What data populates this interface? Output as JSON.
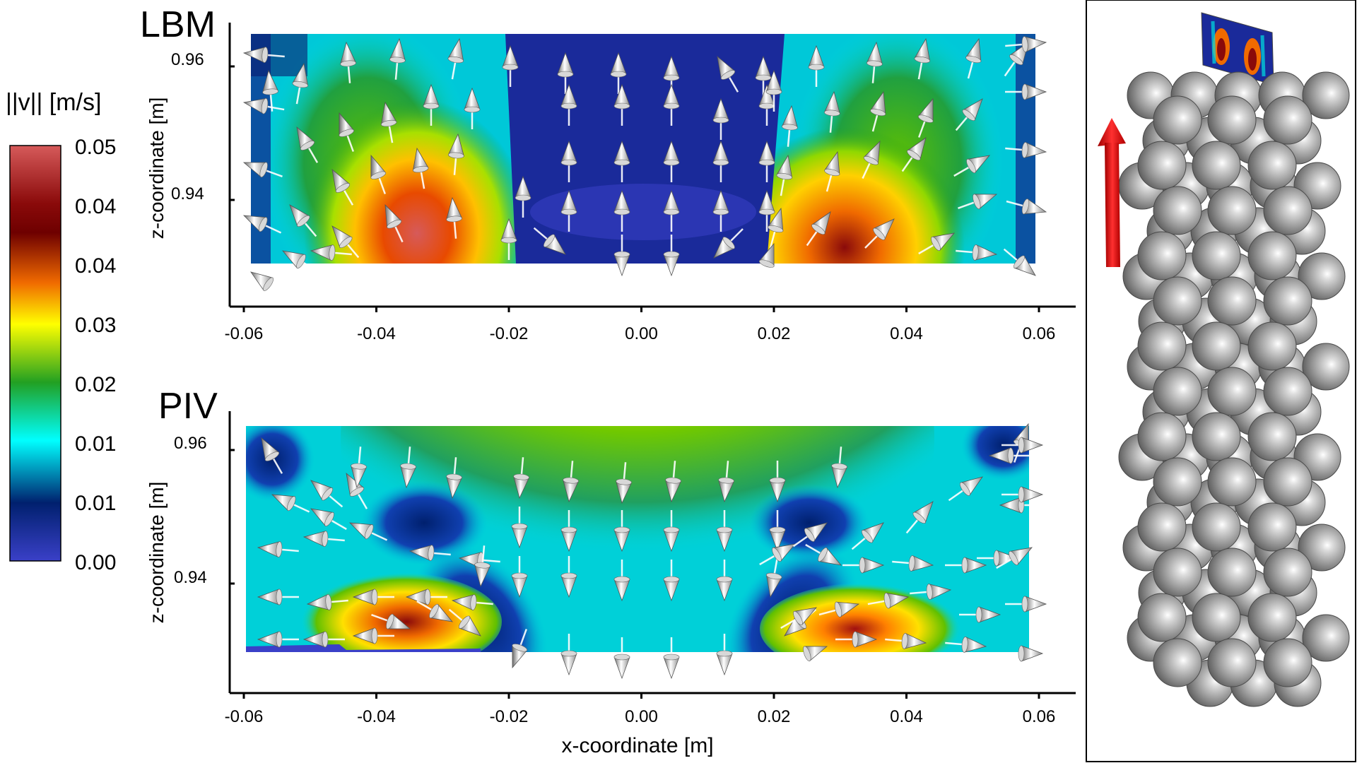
{
  "colorbar": {
    "label": "||v|| [m/s]",
    "ticks": [
      "0.05",
      "0.04",
      "0.04",
      "0.03",
      "0.02",
      "0.01",
      "0.01",
      "0.00"
    ],
    "colors": [
      "#d65a5a",
      "#6e0000",
      "#f06a00",
      "#ffff00",
      "#22a022",
      "#00ffff",
      "#00206e",
      "#3a40c8"
    ]
  },
  "panels": [
    {
      "id": "lbm",
      "label": "LBM",
      "xticks": [
        "-0.06",
        "-0.04",
        "-0.02",
        "0.00",
        "0.02",
        "0.04",
        "0.06"
      ],
      "yticks": [
        "0.96",
        "0.94"
      ],
      "ylabel": "z-coordinate [m]"
    },
    {
      "id": "piv",
      "label": "PIV",
      "xticks": [
        "-0.06",
        "-0.04",
        "-0.02",
        "0.00",
        "0.02",
        "0.04",
        "0.06"
      ],
      "yticks": [
        "0.96",
        "0.94"
      ],
      "ylabel": "z-coordinate [m]"
    }
  ],
  "xlabel": "x-coordinate [m]",
  "flow_arrow": {
    "color": "#e01010",
    "direction": "up"
  },
  "spheres": {
    "color": "#9a9a9a"
  }
}
